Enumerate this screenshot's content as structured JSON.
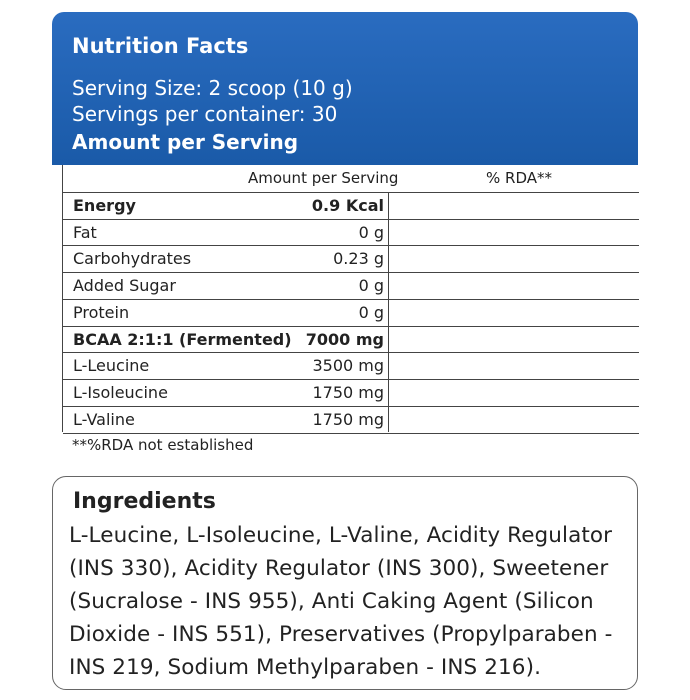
{
  "header": {
    "title": "Nutrition Facts",
    "serving_size": "Serving Size: 2 scoop (10 g)",
    "servings_per_container": "Servings per container: 30",
    "amount_heading": "Amount per Serving"
  },
  "table": {
    "columns": [
      "Amount per Serving",
      "% RDA**"
    ],
    "rows": [
      [
        "Energy",
        "0.9 Kcal"
      ],
      [
        "Fat",
        "0 g"
      ],
      [
        "Carbohydrates",
        "0.23 g"
      ],
      [
        "Added Sugar",
        "0 g"
      ],
      [
        "Protein",
        "0 g"
      ],
      [
        "BCAA 2:1:1 (Fermented)",
        "7000 mg"
      ],
      [
        "L-Leucine",
        "3500 mg"
      ],
      [
        "L-Isoleucine",
        "1750 mg"
      ],
      [
        "L-Valine",
        "1750 mg"
      ]
    ],
    "footnote": "**%RDA not established"
  },
  "ingredients": {
    "title": "Ingredients",
    "lines": [
      "L-Leucine, L-Isoleucine, L-Valine, Acidity Regulator",
      "(INS 330), Acidity Regulator (INS 300), Sweetener",
      "(Sucralose - INS 955), Anti Caking Agent (Silicon",
      "Dioxide - INS 551), Preservatives (Propylparaben -",
      "INS 219, Sodium Methylparaben - INS 216)."
    ]
  }
}
